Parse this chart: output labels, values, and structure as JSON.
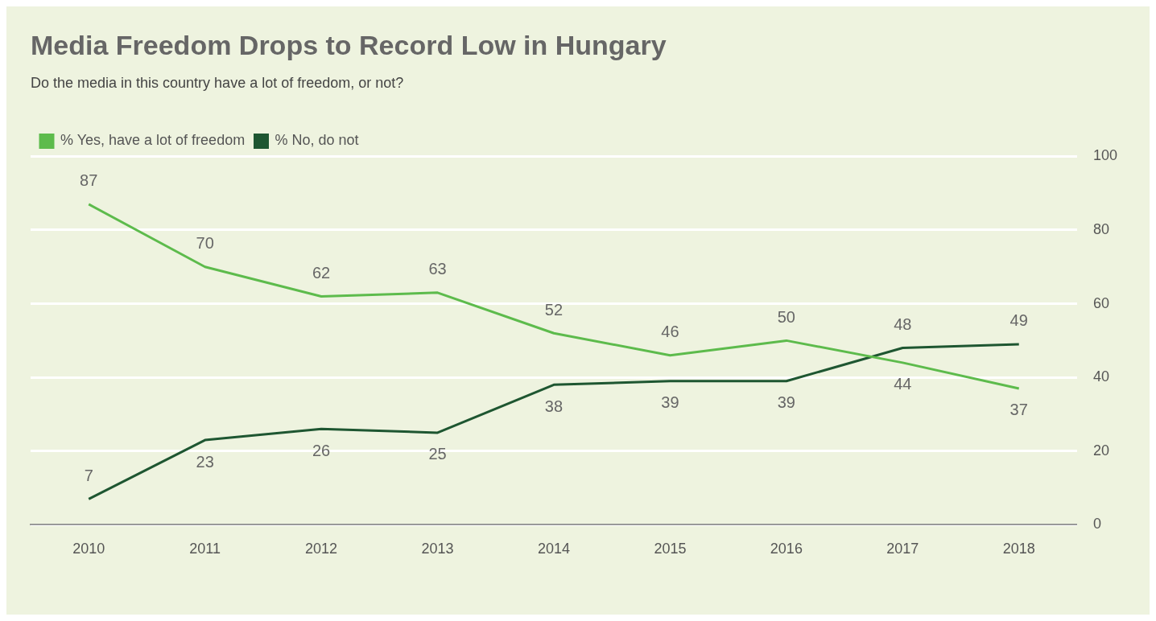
{
  "chart_data": {
    "type": "line",
    "title": "Media Freedom Drops to Record Low in Hungary",
    "subtitle": "Do the media in this country have a lot of freedom, or not?",
    "categories": [
      "2010",
      "2011",
      "2012",
      "2013",
      "2014",
      "2015",
      "2016",
      "2017",
      "2018"
    ],
    "series": [
      {
        "name": "% Yes, have a lot of freedom",
        "color": "#5dbb4c",
        "values": [
          87,
          70,
          62,
          63,
          52,
          46,
          50,
          44,
          37
        ]
      },
      {
        "name": "% No, do not",
        "color": "#1e5631",
        "values": [
          7,
          23,
          26,
          25,
          38,
          39,
          39,
          48,
          49
        ]
      }
    ],
    "ylim": [
      0,
      100
    ],
    "yticks": [
      0,
      20,
      40,
      60,
      80,
      100
    ],
    "grid": "y",
    "legend": "top left",
    "data_labels": true,
    "marker": "none",
    "line_style": "solid"
  }
}
